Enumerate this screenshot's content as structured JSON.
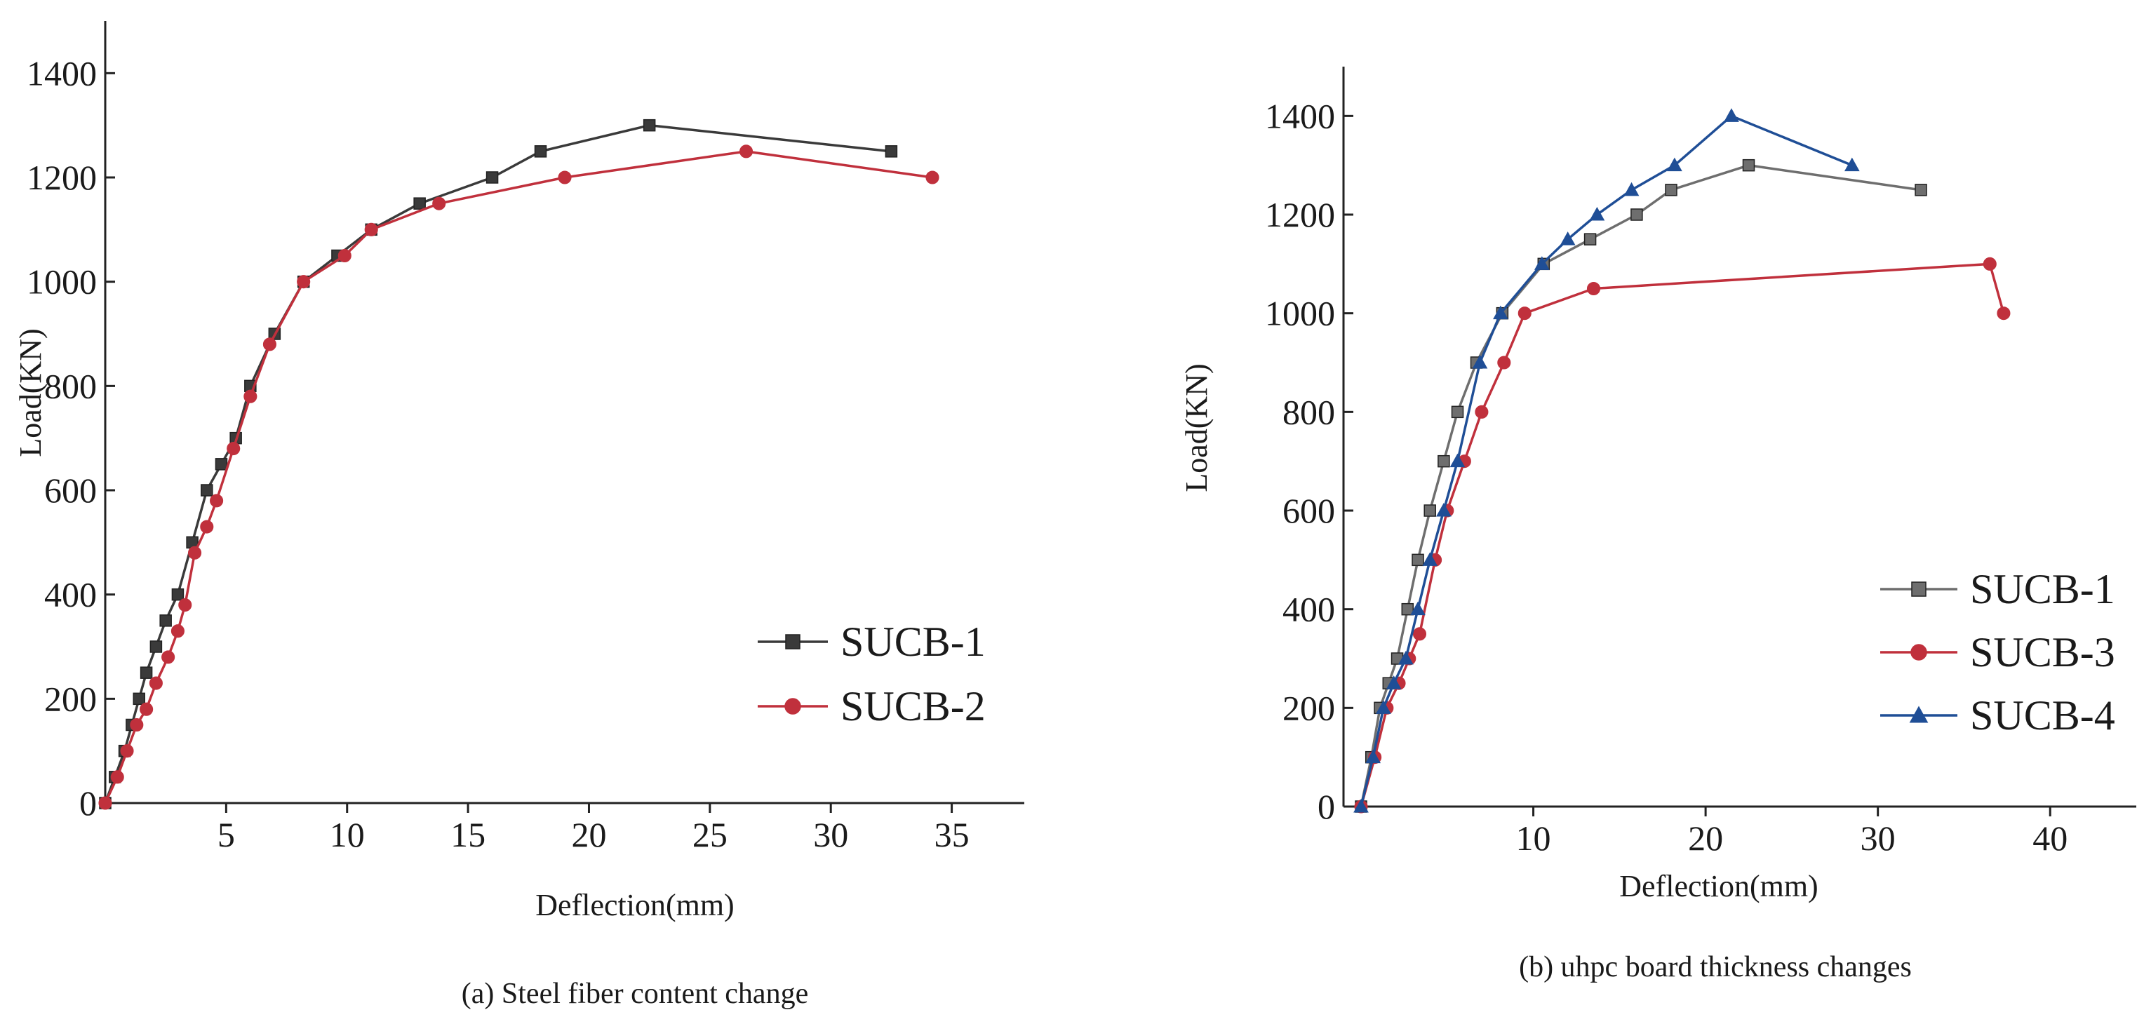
{
  "chart_data": [
    {
      "type": "line",
      "caption": "(a) Steel fiber content change",
      "xlabel": "Deflection(mm)",
      "ylabel": "Load(KN)",
      "xlim": [
        0,
        38
      ],
      "ylim": [
        0,
        1500
      ],
      "xticks": [
        5,
        10,
        15,
        20,
        25,
        30,
        35
      ],
      "yticks": [
        0,
        200,
        400,
        600,
        800,
        1000,
        1200,
        1400
      ],
      "legend_position": "lower-right",
      "series": [
        {
          "name": "SUCB-1",
          "color": "#3a3a3a",
          "marker": "square",
          "x": [
            0,
            0.4,
            0.8,
            1.1,
            1.4,
            1.7,
            2.1,
            2.5,
            3.0,
            3.6,
            4.2,
            4.8,
            5.4,
            6.0,
            7.0,
            8.2,
            9.6,
            11.0,
            13.0,
            16.0,
            18.0,
            22.5,
            32.5
          ],
          "y": [
            0,
            50,
            100,
            150,
            200,
            250,
            300,
            350,
            400,
            500,
            600,
            650,
            700,
            800,
            900,
            1000,
            1050,
            1100,
            1150,
            1200,
            1250,
            1300,
            1250
          ]
        },
        {
          "name": "SUCB-2",
          "color": "#c0303c",
          "marker": "circle",
          "x": [
            0,
            0.5,
            0.9,
            1.3,
            1.7,
            2.1,
            2.6,
            3.0,
            3.3,
            3.7,
            4.2,
            4.6,
            5.3,
            6.0,
            6.8,
            8.2,
            9.9,
            11.0,
            13.8,
            19.0,
            26.5,
            34.2
          ],
          "y": [
            0,
            50,
            100,
            150,
            180,
            230,
            280,
            330,
            380,
            480,
            530,
            580,
            680,
            780,
            880,
            1000,
            1050,
            1100,
            1150,
            1200,
            1250,
            1200
          ]
        }
      ]
    },
    {
      "type": "line",
      "caption": "(b) uhpc board thickness changes",
      "xlabel": "Deflection(mm)",
      "ylabel": "Load(KN)",
      "xlim": [
        0,
        45
      ],
      "ylim": [
        0,
        1500
      ],
      "xticks": [
        10,
        20,
        30,
        40
      ],
      "yticks": [
        0,
        200,
        400,
        600,
        800,
        1000,
        1200,
        1400
      ],
      "legend_position": "lower-right",
      "series": [
        {
          "name": "SUCB-1",
          "color": "#6e6e6e",
          "marker": "square",
          "x": [
            0,
            0.6,
            1.1,
            1.6,
            2.1,
            2.7,
            3.3,
            4.0,
            4.8,
            5.6,
            6.7,
            8.2,
            10.6,
            13.3,
            16.0,
            18.0,
            22.5,
            32.5
          ],
          "y": [
            0,
            100,
            200,
            250,
            300,
            400,
            500,
            600,
            700,
            800,
            900,
            1000,
            1100,
            1150,
            1200,
            1250,
            1300,
            1250
          ]
        },
        {
          "name": "SUCB-3",
          "color": "#c0303c",
          "marker": "circle",
          "x": [
            0,
            0.8,
            1.5,
            2.2,
            2.8,
            3.4,
            4.3,
            5.0,
            6.0,
            7.0,
            8.3,
            9.5,
            13.5,
            36.5,
            37.3
          ],
          "y": [
            0,
            100,
            200,
            250,
            300,
            350,
            500,
            600,
            700,
            800,
            900,
            1000,
            1050,
            1100,
            1000
          ]
        },
        {
          "name": "SUCB-4",
          "color": "#1f4e96",
          "marker": "triangle",
          "x": [
            0,
            0.7,
            1.3,
            1.9,
            2.6,
            3.3,
            4.0,
            4.8,
            5.6,
            6.9,
            8.1,
            10.5,
            12.0,
            13.7,
            15.7,
            18.2,
            21.5,
            28.5
          ],
          "y": [
            0,
            100,
            200,
            250,
            300,
            400,
            500,
            600,
            700,
            900,
            1000,
            1100,
            1150,
            1200,
            1250,
            1300,
            1400,
            1300
          ]
        }
      ]
    }
  ]
}
